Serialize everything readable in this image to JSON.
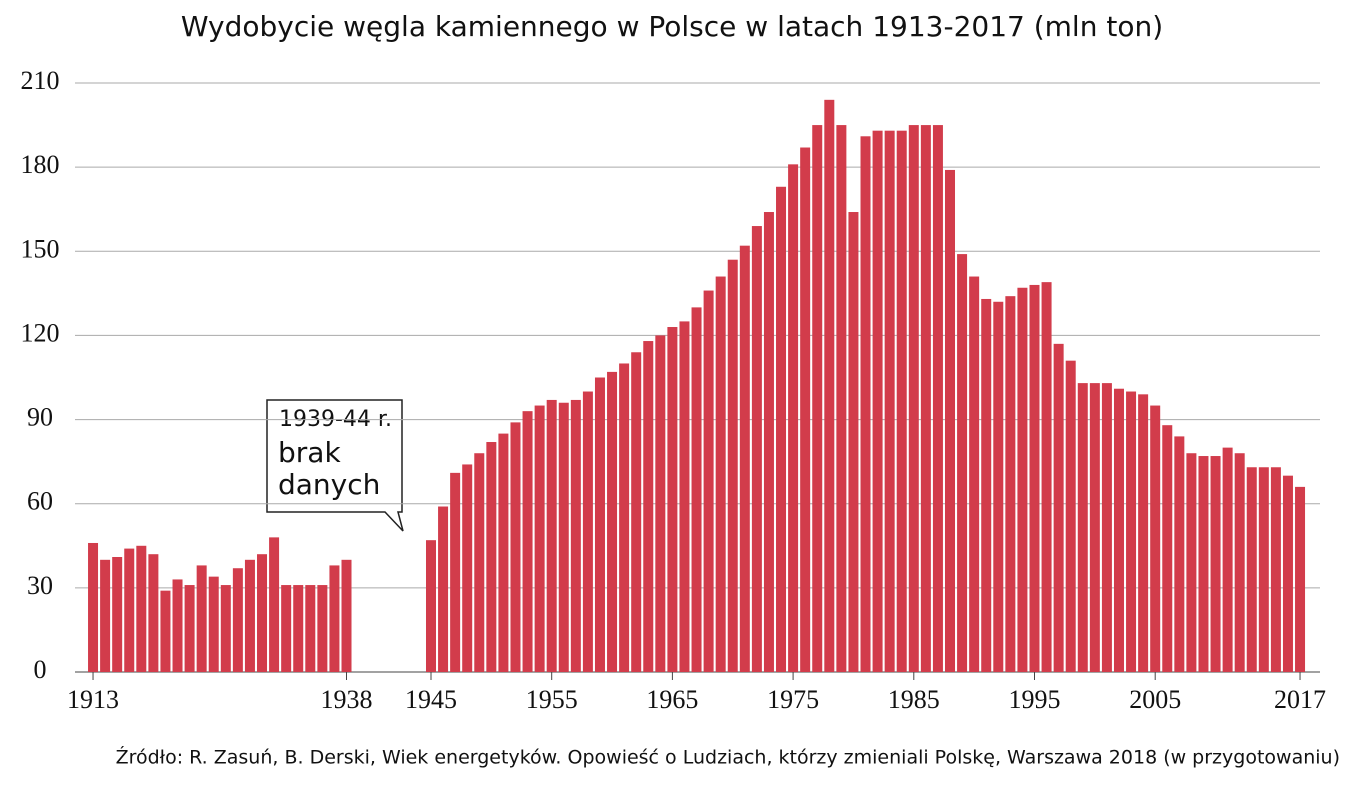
{
  "chart_data": {
    "type": "bar",
    "title": "Wydobycie węgla kamiennego w Polsce w latach 1913-2017 (mln ton)",
    "source": "Źródło: R. Zasuń, B. Derski, Wiek energetyków. Opowieść o Ludziach, którzy zmieniali Polskę, Warszawa 2018 (w przygotowaniu)",
    "annotation": [
      "1939-44 r.",
      "brak",
      "danych"
    ],
    "categories": [
      "1913",
      null,
      null,
      null,
      null,
      null,
      null,
      null,
      null,
      null,
      null,
      null,
      null,
      null,
      null,
      null,
      null,
      null,
      null,
      null,
      null,
      "1938",
      null,
      null,
      null,
      null,
      null,
      null,
      "1945",
      null,
      null,
      null,
      null,
      null,
      null,
      null,
      null,
      null,
      "1955",
      null,
      null,
      null,
      null,
      null,
      null,
      null,
      null,
      null,
      "1965",
      null,
      null,
      null,
      null,
      null,
      null,
      null,
      null,
      null,
      "1975",
      null,
      null,
      null,
      null,
      null,
      null,
      null,
      null,
      null,
      "1985",
      null,
      null,
      null,
      null,
      null,
      null,
      null,
      null,
      null,
      "1995",
      null,
      null,
      null,
      null,
      null,
      null,
      null,
      null,
      null,
      "2005",
      null,
      null,
      null,
      null,
      null,
      null,
      null,
      null,
      null,
      null,
      null,
      "2017"
    ],
    "values": [
      46,
      40,
      41,
      44,
      45,
      42,
      29,
      33,
      31,
      38,
      34,
      31,
      37,
      40,
      42,
      48,
      31,
      31,
      31,
      31,
      38,
      40,
      null,
      null,
      null,
      null,
      null,
      null,
      47,
      59,
      71,
      74,
      78,
      82,
      85,
      89,
      93,
      95,
      97,
      96,
      97,
      100,
      105,
      107,
      110,
      114,
      118,
      120,
      123,
      125,
      130,
      136,
      141,
      147,
      152,
      159,
      164,
      173,
      181,
      187,
      195,
      204,
      195,
      164,
      191,
      193,
      193,
      193,
      195,
      195,
      195,
      179,
      149,
      141,
      133,
      132,
      134,
      137,
      138,
      139,
      117,
      111,
      103,
      103,
      103,
      101,
      100,
      99,
      95,
      88,
      84,
      78,
      77,
      77,
      80,
      78,
      73,
      73,
      73,
      70,
      66
    ],
    "color": "#d23c4b",
    "ylim": [
      0,
      210
    ],
    "yticks": [
      0,
      30,
      60,
      90,
      120,
      150,
      180,
      210
    ],
    "grid": true
  }
}
